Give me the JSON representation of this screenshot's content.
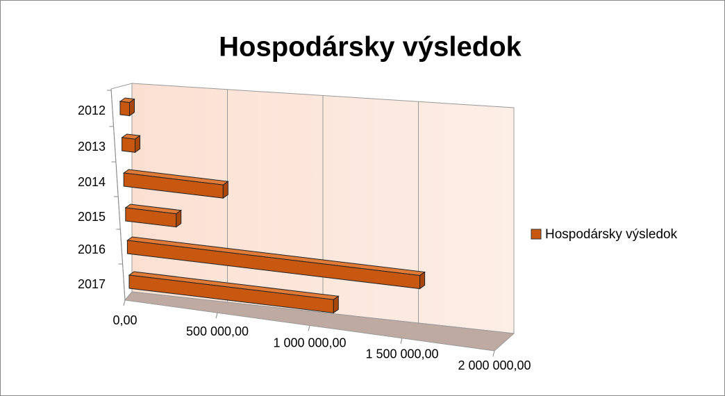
{
  "chart_data": {
    "type": "bar3d",
    "title": "Hospodársky výsledok",
    "categories": [
      "2012",
      "2013",
      "2014",
      "2015",
      "2016",
      "2017"
    ],
    "series": [
      {
        "name": "Hospodársky výsledok",
        "color": "#c8580f",
        "values": [
          50000,
          70000,
          530000,
          270000,
          1560000,
          1090000
        ]
      }
    ],
    "xlim": [
      0,
      2000000
    ],
    "xticks": [
      {
        "value": 0,
        "label": "0,00"
      },
      {
        "value": 500000,
        "label": "500 000,00"
      },
      {
        "value": 1000000,
        "label": "1 000 000,00"
      },
      {
        "value": 1500000,
        "label": "1 500 000,00"
      },
      {
        "value": 2000000,
        "label": "2 000 000,00"
      }
    ],
    "grid": true,
    "legend": "right"
  }
}
